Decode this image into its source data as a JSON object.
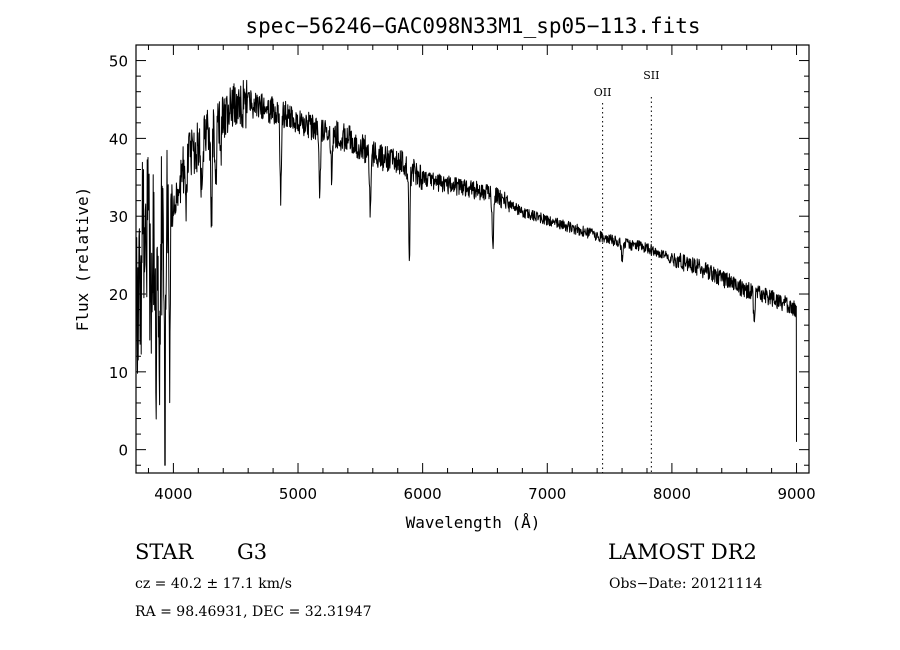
{
  "chart_data": {
    "type": "line",
    "title": "spec−56246−GAC098N33M1_sp05−113.fits",
    "xlabel": "Wavelength (Å)",
    "ylabel": "Flux (relative)",
    "xlim": [
      3700,
      9100
    ],
    "ylim": [
      -3,
      52
    ],
    "xticks": [
      4000,
      5000,
      6000,
      7000,
      8000,
      9000
    ],
    "yticks": [
      0,
      10,
      20,
      30,
      40,
      50
    ],
    "grid": false,
    "lines": [
      {
        "label": "OII",
        "x": 7444
      },
      {
        "label": "SII",
        "x": 7835
      }
    ],
    "continuum": [
      [
        3700,
        20
      ],
      [
        3780,
        28
      ],
      [
        3860,
        24
      ],
      [
        3950,
        30
      ],
      [
        4000,
        32
      ],
      [
        4100,
        37
      ],
      [
        4200,
        39
      ],
      [
        4300,
        41
      ],
      [
        4400,
        43
      ],
      [
        4500,
        44
      ],
      [
        4600,
        44.5
      ],
      [
        4700,
        44
      ],
      [
        4800,
        43.5
      ],
      [
        4900,
        43
      ],
      [
        5000,
        42
      ],
      [
        5200,
        41
      ],
      [
        5400,
        40
      ],
      [
        5600,
        38
      ],
      [
        5800,
        37
      ],
      [
        6000,
        35
      ],
      [
        6200,
        34
      ],
      [
        6400,
        33.5
      ],
      [
        6600,
        32.5
      ],
      [
        6800,
        30.5
      ],
      [
        7000,
        29.5
      ],
      [
        7200,
        28.5
      ],
      [
        7400,
        27.5
      ],
      [
        7600,
        26.5
      ],
      [
        7800,
        26
      ],
      [
        8000,
        24.5
      ],
      [
        8200,
        23.5
      ],
      [
        8400,
        22
      ],
      [
        8600,
        20.5
      ],
      [
        8800,
        19.5
      ],
      [
        9000,
        18
      ]
    ],
    "absorption_lines": [
      {
        "x": 3820,
        "depth": 18
      },
      {
        "x": 3860,
        "depth": 15
      },
      {
        "x": 3889,
        "depth": 16
      },
      {
        "x": 3934,
        "depth": 25
      },
      {
        "x": 3969,
        "depth": 20
      },
      {
        "x": 4101,
        "depth": 8
      },
      {
        "x": 4227,
        "depth": 6
      },
      {
        "x": 4305,
        "depth": 12
      },
      {
        "x": 4340,
        "depth": 7
      },
      {
        "x": 4383,
        "depth": 4
      },
      {
        "x": 4861,
        "depth": 10
      },
      {
        "x": 5175,
        "depth": 9
      },
      {
        "x": 5270,
        "depth": 5
      },
      {
        "x": 5580,
        "depth": 7
      },
      {
        "x": 5893,
        "depth": 11
      },
      {
        "x": 6563,
        "depth": 7
      },
      {
        "x": 7600,
        "depth": 2
      },
      {
        "x": 8660,
        "depth": 4
      }
    ]
  },
  "info": {
    "object_type": "STAR",
    "subclass": "G3",
    "survey": "LAMOST DR2",
    "redshift": "cz =  40.2 ± 17.1 km/s",
    "obs_date": "Obs−Date: 20121114",
    "coords": "RA =   98.46931, DEC =   32.31947"
  }
}
